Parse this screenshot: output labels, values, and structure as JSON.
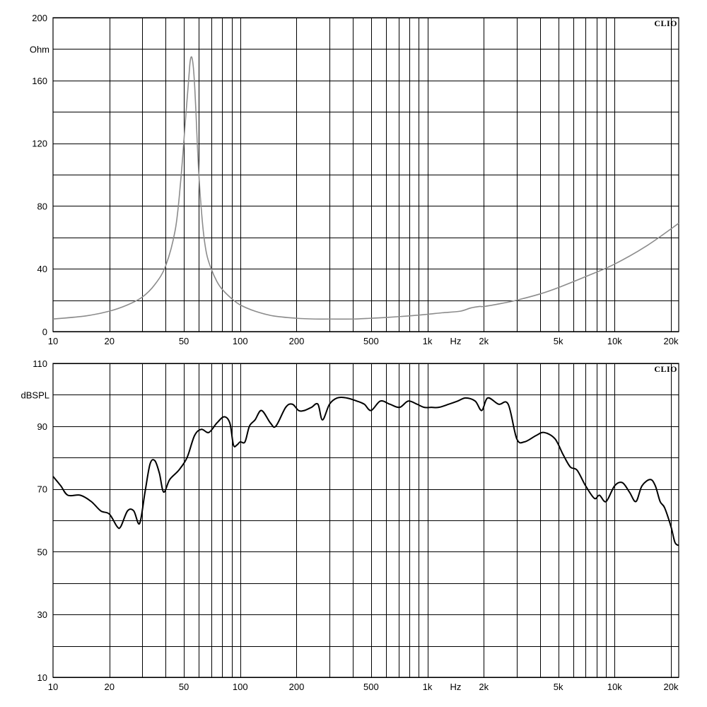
{
  "chart_data": [
    {
      "type": "line",
      "brand": "CLIO",
      "ylabel": "Ohm",
      "xlabel": "Hz",
      "xscale": "log",
      "xlim": [
        10,
        22000
      ],
      "ylim": [
        0,
        200
      ],
      "yticks": [
        0,
        40,
        80,
        120,
        160,
        200
      ],
      "ygrid": [
        0,
        20,
        40,
        60,
        80,
        100,
        120,
        140,
        160,
        180,
        200
      ],
      "xticks": [
        {
          "value": 10,
          "label": "10"
        },
        {
          "value": 20,
          "label": "20"
        },
        {
          "value": 50,
          "label": "50"
        },
        {
          "value": 100,
          "label": "100"
        },
        {
          "value": 200,
          "label": "200"
        },
        {
          "value": 500,
          "label": "500"
        },
        {
          "value": 1000,
          "label": "1k"
        },
        {
          "value": 2000,
          "label": "2k"
        },
        {
          "value": 5000,
          "label": "5k"
        },
        {
          "value": 10000,
          "label": "10k"
        },
        {
          "value": 20000,
          "label": "20k"
        }
      ],
      "line_color": "#8c8c8c",
      "series": [
        {
          "x": [
            10,
            15,
            20,
            25,
            30,
            35,
            40,
            45,
            48,
            51,
            53,
            54,
            55,
            56,
            57,
            58,
            60,
            63,
            66,
            70,
            75,
            80,
            90,
            100,
            120,
            150,
            200,
            250,
            300,
            400,
            500,
            600,
            800,
            1000,
            1200,
            1500,
            1700,
            1900,
            2000,
            2500,
            3000,
            4000,
            5000,
            7000,
            10000,
            15000,
            22000
          ],
          "y": [
            8,
            10,
            13,
            17,
            22,
            30,
            42,
            65,
            95,
            135,
            160,
            172,
            175,
            170,
            158,
            140,
            102,
            68,
            50,
            40,
            32,
            27,
            21,
            17,
            13,
            10,
            8.5,
            8,
            8,
            8,
            8.5,
            9,
            10,
            11,
            12,
            13,
            15,
            16,
            16,
            18,
            20,
            24,
            28,
            35,
            43,
            55,
            69
          ]
        }
      ]
    },
    {
      "type": "line",
      "brand": "CLIO",
      "ylabel": "dBSPL",
      "xlabel": "Hz",
      "xscale": "log",
      "xlim": [
        10,
        22000
      ],
      "ylim": [
        10,
        110
      ],
      "yticks": [
        10,
        30,
        50,
        70,
        90,
        110
      ],
      "ygrid": [
        10,
        20,
        30,
        40,
        50,
        60,
        70,
        80,
        90,
        100,
        110
      ],
      "xticks": [
        {
          "value": 10,
          "label": "10"
        },
        {
          "value": 20,
          "label": "20"
        },
        {
          "value": 50,
          "label": "50"
        },
        {
          "value": 100,
          "label": "100"
        },
        {
          "value": 200,
          "label": "200"
        },
        {
          "value": 500,
          "label": "500"
        },
        {
          "value": 1000,
          "label": "1k"
        },
        {
          "value": 2000,
          "label": "2k"
        },
        {
          "value": 5000,
          "label": "5k"
        },
        {
          "value": 10000,
          "label": "10k"
        },
        {
          "value": 20000,
          "label": "20k"
        }
      ],
      "line_color": "#000000",
      "series": [
        {
          "x": [
            10,
            11,
            12,
            14,
            16,
            18,
            20,
            22,
            23,
            25,
            27,
            29,
            31,
            33,
            35,
            37,
            39,
            42,
            47,
            52,
            57,
            62,
            68,
            75,
            82,
            88,
            92,
            96,
            100,
            106,
            112,
            120,
            130,
            145,
            155,
            175,
            190,
            205,
            220,
            240,
            260,
            275,
            300,
            330,
            370,
            420,
            460,
            500,
            560,
            630,
            710,
            790,
            880,
            960,
            1050,
            1150,
            1300,
            1450,
            1600,
            1800,
            1950,
            2100,
            2400,
            2700,
            3000,
            3300,
            3800,
            4200,
            4800,
            5300,
            5800,
            6300,
            7000,
            7800,
            8300,
            9000,
            10000,
            11000,
            12000,
            13000,
            14000,
            15500,
            16500,
            17500,
            18500,
            20000,
            21000,
            22000
          ],
          "y": [
            74,
            71,
            68,
            68,
            66,
            63,
            62,
            58,
            58,
            63,
            63,
            59,
            69,
            78,
            79,
            75,
            69,
            73,
            76,
            80,
            87,
            89,
            88,
            91,
            93,
            91,
            84,
            84,
            85,
            85,
            90,
            92,
            95,
            91,
            90,
            96,
            97,
            95,
            95,
            96,
            97,
            92,
            97,
            99,
            99,
            98,
            97,
            95,
            98,
            97,
            96,
            98,
            97,
            96,
            96,
            96,
            97,
            98,
            99,
            98,
            95,
            99,
            97,
            97,
            86,
            85,
            87,
            88,
            86,
            81,
            77,
            76,
            71,
            67,
            68,
            66,
            71,
            72,
            69,
            66,
            71,
            73,
            71,
            66,
            64,
            58,
            53,
            52
          ]
        }
      ]
    }
  ]
}
